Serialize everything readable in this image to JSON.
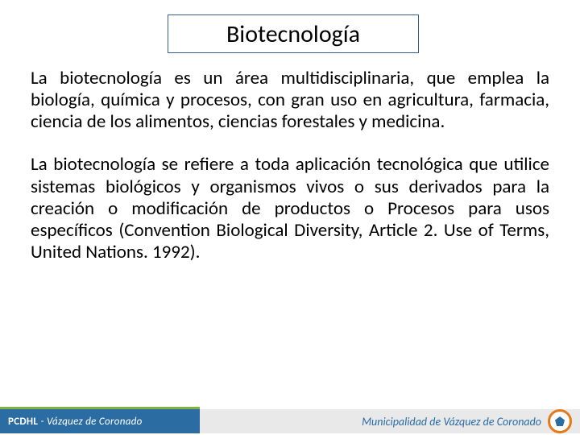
{
  "title": "Biotecnología",
  "paragraphs": [
    "La biotecnología es un área multidisciplinaria, que emplea la biología, química y procesos, con gran uso en agricultura, farmacia, ciencia de los alimentos, ciencias forestales y medicina.",
    "La biotecnología se refiere a toda aplicación tecnológica que utilice sistemas biológicos y organismos vivos o sus derivados para la creación  o modificación de productos o Procesos para usos específicos (Convention Biological Diversity, Article 2. Use of Terms, United Nations. 1992)."
  ],
  "footer": {
    "left_bold": "PCDHL",
    "left_sep": " - ",
    "left_rest": "Vázquez de Coronado",
    "right": "Municipalidad de Vázquez de Coronado"
  },
  "colors": {
    "title_border": "#385d8a",
    "footer_blue": "#2b6ca3",
    "footer_grey": "#e9e9e9",
    "accent_green": "#7fb341",
    "accent_orange": "#e67817"
  }
}
